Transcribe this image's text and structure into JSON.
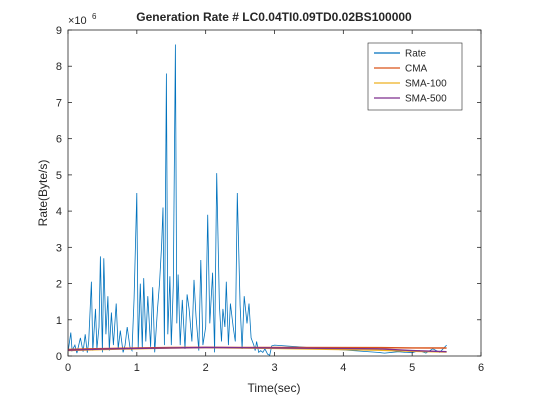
{
  "chart_data": {
    "type": "line",
    "title": "Generation Rate # LC0.04TI0.09TD0.02BS100000",
    "xlabel": "Time(sec)",
    "ylabel": "Rate(Byte/s)",
    "y_exponent": "×10",
    "y_exponent_power": "6",
    "xlim": [
      0,
      6
    ],
    "ylim": [
      0,
      9000000
    ],
    "x_ticks": [
      0,
      1,
      2,
      3,
      4,
      5,
      6
    ],
    "x_tick_labels": [
      "0",
      "1",
      "2",
      "3",
      "4",
      "5",
      "6"
    ],
    "y_ticks": [
      0,
      1000000,
      2000000,
      3000000,
      4000000,
      5000000,
      6000000,
      7000000,
      8000000,
      9000000
    ],
    "y_tick_labels": [
      "0",
      "1",
      "2",
      "3",
      "4",
      "5",
      "6",
      "7",
      "8",
      "9"
    ],
    "grid": false,
    "legend_position": "top-right",
    "series": [
      {
        "name": "Rate",
        "color": "#0072bd",
        "x": [
          0.0,
          0.04,
          0.06,
          0.1,
          0.13,
          0.18,
          0.22,
          0.25,
          0.28,
          0.3,
          0.34,
          0.36,
          0.4,
          0.42,
          0.45,
          0.47,
          0.5,
          0.52,
          0.55,
          0.58,
          0.6,
          0.63,
          0.66,
          0.7,
          0.73,
          0.76,
          0.8,
          0.83,
          0.86,
          0.9,
          0.93,
          0.96,
          1.0,
          1.02,
          1.05,
          1.08,
          1.1,
          1.13,
          1.16,
          1.2,
          1.23,
          1.26,
          1.3,
          1.33,
          1.36,
          1.38,
          1.4,
          1.43,
          1.45,
          1.48,
          1.5,
          1.53,
          1.56,
          1.58,
          1.6,
          1.63,
          1.66,
          1.7,
          1.73,
          1.76,
          1.8,
          1.83,
          1.86,
          1.9,
          1.93,
          1.96,
          2.0,
          2.03,
          2.06,
          2.1,
          2.13,
          2.16,
          2.2,
          2.23,
          2.25,
          2.28,
          2.3,
          2.33,
          2.36,
          2.4,
          2.43,
          2.46,
          2.5,
          2.53,
          2.56,
          2.6,
          2.63,
          2.66,
          2.7,
          2.72,
          2.74,
          2.77,
          2.8,
          2.83,
          2.86,
          2.9,
          2.93,
          2.96,
          3.0,
          4.5,
          4.6,
          4.8,
          4.9,
          5.0,
          5.1,
          5.2,
          5.3,
          5.4,
          5.5
        ],
        "values": [
          100000,
          650000,
          150000,
          300000,
          80000,
          500000,
          120000,
          600000,
          90000,
          400000,
          2050000,
          150000,
          1300000,
          200000,
          800000,
          2750000,
          100000,
          2700000,
          600000,
          1650000,
          150000,
          1200000,
          300000,
          1450000,
          200000,
          700000,
          100000,
          300000,
          800000,
          250000,
          150000,
          1600000,
          4500000,
          200000,
          2000000,
          200000,
          2150000,
          400000,
          1650000,
          250000,
          1900000,
          100000,
          1300000,
          2000000,
          3050000,
          4100000,
          300000,
          7800000,
          600000,
          2200000,
          300000,
          1950000,
          8600000,
          900000,
          2250000,
          300000,
          1550000,
          200000,
          1700000,
          1300000,
          400000,
          2100000,
          1100000,
          150000,
          2650000,
          300000,
          800000,
          3900000,
          900000,
          2300000,
          100000,
          5050000,
          1400000,
          400000,
          1300000,
          800000,
          2050000,
          300000,
          1450000,
          800000,
          400000,
          4500000,
          1400000,
          200000,
          1650000,
          900000,
          1450000,
          500000,
          300000,
          150000,
          400000,
          100000,
          150000,
          100000,
          200000,
          50000,
          20000,
          280000,
          300000,
          100000,
          80000,
          120000,
          100000,
          90000,
          150000,
          80000,
          200000,
          100000,
          300000
        ]
      },
      {
        "name": "CMA",
        "color": "#d95319",
        "x": [
          0.0,
          0.3,
          0.6,
          1.0,
          1.5,
          2.0,
          2.5,
          3.0,
          4.5,
          5.0,
          5.5
        ],
        "values": [
          180000,
          200000,
          210000,
          220000,
          235000,
          240000,
          238000,
          235000,
          232000,
          225000,
          220000
        ]
      },
      {
        "name": "SMA-100",
        "color": "#edb120",
        "x": [
          0.0,
          0.5,
          1.0,
          1.5,
          2.0,
          2.5,
          3.0,
          4.5,
          5.0,
          5.5
        ],
        "values": [
          150000,
          180000,
          200000,
          220000,
          230000,
          220000,
          210000,
          160000,
          130000,
          110000
        ]
      },
      {
        "name": "SMA-500",
        "color": "#7e2f8e",
        "x": [
          0.0,
          0.5,
          1.0,
          1.5,
          2.0,
          2.5,
          3.0,
          4.5,
          5.0,
          5.5
        ],
        "values": [
          160000,
          190000,
          210000,
          225000,
          235000,
          230000,
          225000,
          200000,
          150000,
          120000
        ]
      }
    ]
  }
}
